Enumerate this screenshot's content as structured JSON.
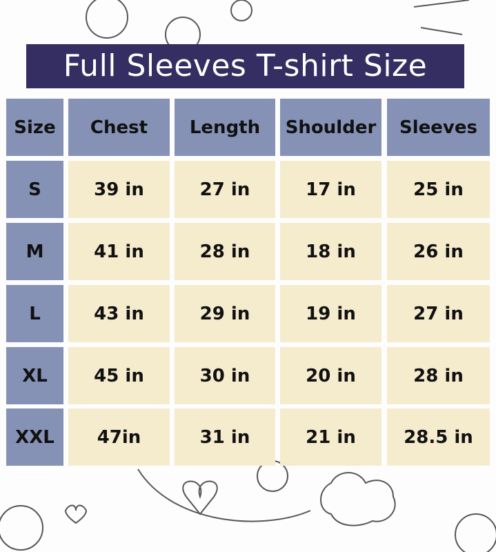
{
  "title": "Full Sleeves T-shirt Size",
  "colors": {
    "title_bg": "#342e62",
    "header_bg": "#8592b6",
    "value_bg": "#f5ebcd"
  },
  "table": {
    "headers": [
      "Size",
      "Chest",
      "Length",
      "Shoulder",
      "Sleeves"
    ],
    "rows": [
      [
        "S",
        "39 in",
        "27 in",
        "17 in",
        "25 in"
      ],
      [
        "M",
        "41 in",
        "28 in",
        "18 in",
        "26 in"
      ],
      [
        "L",
        "43 in",
        "29 in",
        "19 in",
        "27 in"
      ],
      [
        "XL",
        "45 in",
        "30 in",
        "20 in",
        "28 in"
      ],
      [
        "XXL",
        "47in",
        "31 in",
        "21 in",
        "28.5 in"
      ]
    ]
  }
}
